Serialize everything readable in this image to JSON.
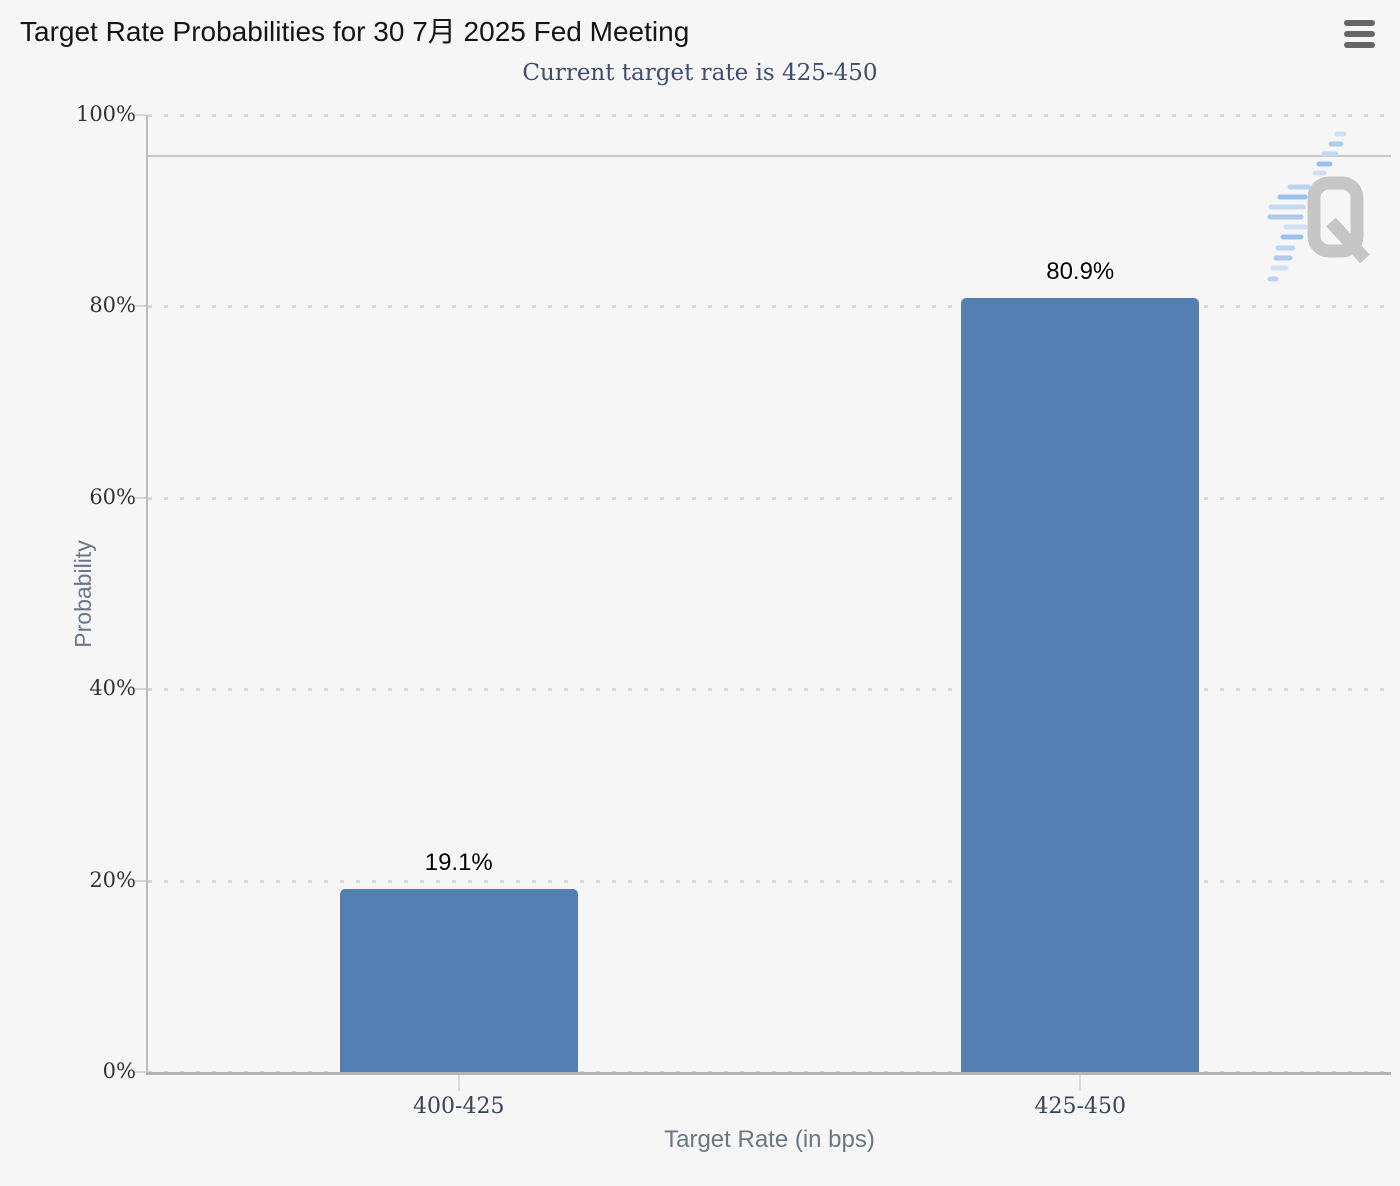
{
  "header": {
    "title": "Target Rate Probabilities for 30 7月 2025 Fed Meeting",
    "menu_icon": "hamburger-icon"
  },
  "chart_data": {
    "type": "bar",
    "title": "Target Rate Probabilities for 30 7月 2025 Fed Meeting",
    "subtitle": "Current target rate is 425-450",
    "categories": [
      "400-425",
      "425-450"
    ],
    "values": [
      19.1,
      80.9
    ],
    "value_labels": [
      "19.1%",
      "80.9%"
    ],
    "xlabel": "Target Rate (in bps)",
    "ylabel": "Probability",
    "ylim": [
      0,
      100
    ],
    "ytick_interval": 20,
    "ytick_labels": [
      "0%",
      "20%",
      "40%",
      "60%",
      "80%",
      "100%"
    ],
    "grid": "dotted horizontal gridlines at each 20%",
    "legend": "none",
    "reference_line_pct": 95.8,
    "bar_color": "#537fb3",
    "axis_line_color": "#b3b3b3",
    "grid_dot_color": "#d8d8d8",
    "subtitle_color": "#3f4e6d",
    "watermark": "QuikStrike Q logo"
  }
}
